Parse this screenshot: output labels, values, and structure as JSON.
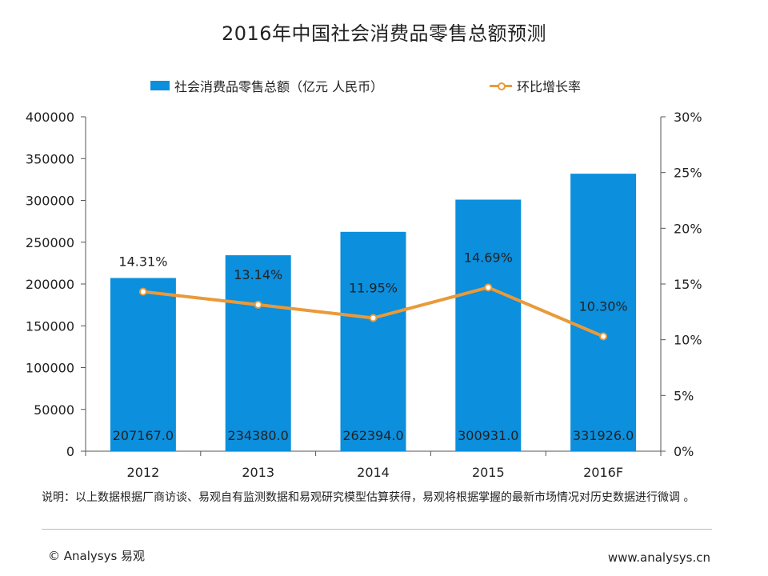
{
  "title": "2016年中国社会消费品零售总额预测",
  "legend": {
    "bar_label": "社会消费品零售总额（亿元 人民币）",
    "line_label": "环比增长率"
  },
  "colors": {
    "bar": "#0c8fdc",
    "line": "#e99a3a",
    "axis": "#555555"
  },
  "chart_data": {
    "type": "bar",
    "categories": [
      "2012",
      "2013",
      "2014",
      "2015",
      "2016F"
    ],
    "series": [
      {
        "name": "社会消费品零售总额（亿元 人民币）",
        "type": "bar",
        "axis": "left",
        "values": [
          207167.0,
          234380.0,
          262394.0,
          300931.0,
          331926.0
        ],
        "value_labels": [
          "207167.0",
          "234380.0",
          "262394.0",
          "300931.0",
          "331926.0"
        ]
      },
      {
        "name": "环比增长率",
        "type": "line",
        "axis": "right",
        "values": [
          14.31,
          13.14,
          11.95,
          14.69,
          10.3
        ],
        "value_labels": [
          "14.31%",
          "13.14%",
          "11.95%",
          "14.69%",
          "10.30%"
        ]
      }
    ],
    "y_left": {
      "ylim": [
        0,
        400000
      ],
      "ticks": [
        0,
        50000,
        100000,
        150000,
        200000,
        250000,
        300000,
        350000,
        400000
      ],
      "tick_labels": [
        "0",
        "50000",
        "100000",
        "150000",
        "200000",
        "250000",
        "300000",
        "350000",
        "400000"
      ]
    },
    "y_right": {
      "ylim": [
        0,
        30
      ],
      "ticks": [
        0,
        5,
        10,
        15,
        20,
        25,
        30
      ],
      "tick_labels": [
        "0%",
        "5%",
        "10%",
        "15%",
        "20%",
        "25%",
        "30%"
      ]
    },
    "grid": false,
    "legend_position": "top"
  },
  "footer": {
    "note": "说明：以上数据根据厂商访谈、易观自有监测数据和易观研究模型估算获得，易观将根据掌握的最新市场情况对历史数据进行微调 。",
    "copyright": "© Analysys 易观",
    "website": "www.analysys.cn"
  }
}
